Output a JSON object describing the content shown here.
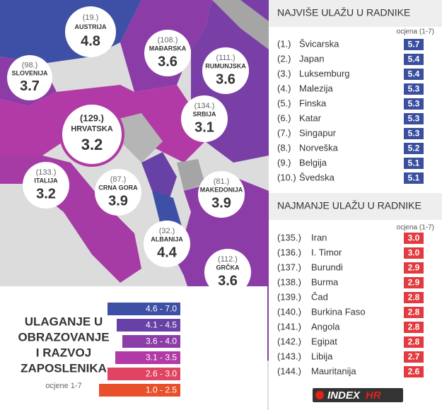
{
  "map": {
    "countries": [
      {
        "rank": "(19.)",
        "name": "AUSTRIJA",
        "score": "4.8"
      },
      {
        "rank": "(108.)",
        "name": "MAĐARSKA",
        "score": "3.6"
      },
      {
        "rank": "(111.)",
        "name": "RUMUNJSKA",
        "score": "3.6"
      },
      {
        "rank": "(98.)",
        "name": "SLOVENIJA",
        "score": "3.7"
      },
      {
        "rank": "(134.)",
        "name": "SRBIJA",
        "score": "3.1"
      },
      {
        "rank": "(129.)",
        "name": "HRVATSKA",
        "score": "3.2"
      },
      {
        "rank": "(133.)",
        "name": "ITALIJA",
        "score": "3.2"
      },
      {
        "rank": "(87.)",
        "name": "CRNA GORA",
        "score": "3.9"
      },
      {
        "rank": "(81.)",
        "name": "MAKEDONIJA",
        "score": "3.9"
      },
      {
        "rank": "(32.)",
        "name": "ALBANIJA",
        "score": "4.4"
      },
      {
        "rank": "(112.)",
        "name": "GRČKA",
        "score": "3.6"
      }
    ]
  },
  "legend": {
    "title": [
      "ULAGANJE U",
      "OBRAZOVANJE",
      "I RAZVOJ",
      "ZAPOSLENIKA"
    ],
    "subtitle": "ocjene 1-7",
    "ranges": [
      {
        "label": "4.6 - 7.0",
        "color": "#3e4fa6"
      },
      {
        "label": "4.1 - 4.5",
        "color": "#6841a6"
      },
      {
        "label": "3.6 - 4.0",
        "color": "#8c3ca7"
      },
      {
        "label": "3.1 - 3.5",
        "color": "#b23aa6"
      },
      {
        "label": "2.6 - 3.0",
        "color": "#df4462"
      },
      {
        "label": "1.0 - 2.5",
        "color": "#e8502c"
      }
    ]
  },
  "top": {
    "title": "NAJVIŠE ULAŽU U RADNIKE",
    "column": "ocjena (1-7)",
    "color": "#3a4f9f",
    "rows": [
      [
        "(1.)",
        "Švicarska",
        "5.7"
      ],
      [
        "(2.)",
        "Japan",
        "5.4"
      ],
      [
        "(3.)",
        "Luksemburg",
        "5.4"
      ],
      [
        "(4.)",
        "Malezija",
        "5.3"
      ],
      [
        "(5.)",
        "Finska",
        "5.3"
      ],
      [
        "(6.)",
        "Katar",
        "5.3"
      ],
      [
        "(7.)",
        "Singapur",
        "5.3"
      ],
      [
        "(8.)",
        "Norveška",
        "5.2"
      ],
      [
        "(9.)",
        "Belgija",
        "5.1"
      ],
      [
        "(10.)",
        "Švedska",
        "5.1"
      ]
    ]
  },
  "bottom": {
    "title": "NAJMANJE ULAŽU U RADNIKE",
    "column": "ocjena (1-7)",
    "color": "#e23a3f",
    "rows": [
      [
        "(135.)",
        "Iran",
        "3.0"
      ],
      [
        "(136.)",
        "I. Timor",
        "3.0"
      ],
      [
        "(137.)",
        "Burundi",
        "2.9"
      ],
      [
        "(138.)",
        "Burma",
        "2.9"
      ],
      [
        "(139.)",
        "Čad",
        "2.8"
      ],
      [
        "(140.)",
        "Burkina Faso",
        "2.8"
      ],
      [
        "(141.)",
        "Angola",
        "2.8"
      ],
      [
        "(142.)",
        "Egipat",
        "2.8"
      ],
      [
        "(143.)",
        "Libija",
        "2.7"
      ],
      [
        "(144.)",
        "Mauritanija",
        "2.6"
      ]
    ]
  },
  "logo": {
    "brand": "INDEX",
    "suffix": "HR"
  }
}
